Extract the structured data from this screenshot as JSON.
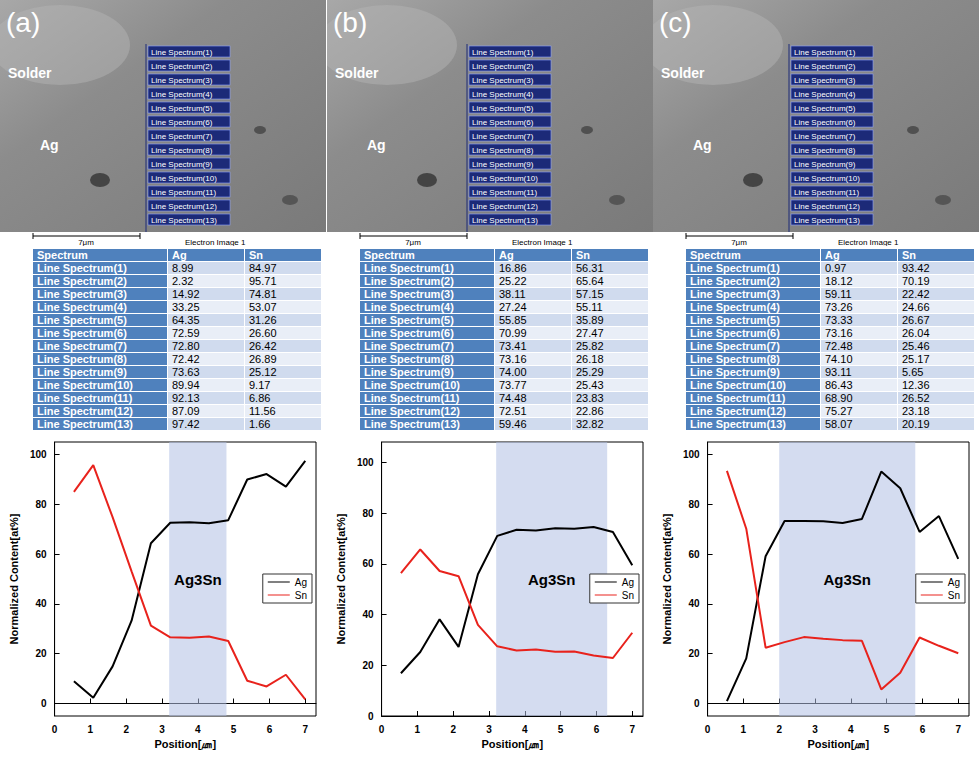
{
  "panels": [
    {
      "image": {
        "label": "(a)",
        "regions": [
          "Solder",
          "Ag"
        ],
        "scale_bar": "7μm",
        "caption": "Electron Image 1"
      },
      "table": {
        "header": [
          "Spectrum",
          "Ag",
          "Sn"
        ],
        "rows": [
          [
            "Line Spectrum(1)",
            "8.99",
            "84.97"
          ],
          [
            "Line Spectrum(2)",
            "2.32",
            "95.71"
          ],
          [
            "Line Spectrum(3)",
            "14.92",
            "74.81"
          ],
          [
            "Line Spectrum(4)",
            "33.25",
            "53.07"
          ],
          [
            "Line Spectrum(5)",
            "64.35",
            "31.26"
          ],
          [
            "Line Spectrum(6)",
            "72.59",
            "26.60"
          ],
          [
            "Line Spectrum(7)",
            "72.80",
            "26.42"
          ],
          [
            "Line Spectrum(8)",
            "72.42",
            "26.89"
          ],
          [
            "Line Spectrum(9)",
            "73.63",
            "25.12"
          ],
          [
            "Line Spectrum(10)",
            "89.94",
            "9.17"
          ],
          [
            "Line Spectrum(11)",
            "92.13",
            "6.86"
          ],
          [
            "Line Spectrum(12)",
            "87.09",
            "11.56"
          ],
          [
            "Line Spectrum(13)",
            "97.42",
            "1.66"
          ]
        ]
      }
    },
    {
      "image": {
        "label": "(b)",
        "regions": [
          "Solder",
          "Ag"
        ],
        "scale_bar": "7μm",
        "caption": "Electron Image 1"
      },
      "table": {
        "header": [
          "Spectrum",
          "Ag",
          "Sn"
        ],
        "rows": [
          [
            "Line Spectrum(1)",
            "16.86",
            "56.31"
          ],
          [
            "Line Spectrum(2)",
            "25.22",
            "65.64"
          ],
          [
            "Line Spectrum(3)",
            "38.11",
            "57.15"
          ],
          [
            "Line Spectrum(4)",
            "27.24",
            "55.11"
          ],
          [
            "Line Spectrum(5)",
            "55.85",
            "35.89"
          ],
          [
            "Line Spectrum(6)",
            "70.99",
            "27.47"
          ],
          [
            "Line Spectrum(7)",
            "73.41",
            "25.82"
          ],
          [
            "Line Spectrum(8)",
            "73.16",
            "26.18"
          ],
          [
            "Line Spectrum(9)",
            "74.00",
            "25.29"
          ],
          [
            "Line Spectrum(10)",
            "73.77",
            "25.43"
          ],
          [
            "Line Spectrum(11)",
            "74.48",
            "23.83"
          ],
          [
            "Line Spectrum(12)",
            "72.51",
            "22.86"
          ],
          [
            "Line Spectrum(13)",
            "59.46",
            "32.82"
          ]
        ]
      }
    },
    {
      "image": {
        "label": "(c)",
        "regions": [
          "Solder",
          "Ag"
        ],
        "scale_bar": "7μm",
        "caption": "Electron Image 1"
      },
      "table": {
        "header": [
          "Spectrum",
          "Ag",
          "Sn"
        ],
        "rows": [
          [
            "Line Spectrum(1)",
            "0.97",
            "93.42"
          ],
          [
            "Line Spectrum(2)",
            "18.12",
            "70.19"
          ],
          [
            "Line Spectrum(3)",
            "59.11",
            "22.42"
          ],
          [
            "Line Spectrum(4)",
            "73.26",
            "24.66"
          ],
          [
            "Line Spectrum(5)",
            "73.33",
            "26.67"
          ],
          [
            "Line Spectrum(6)",
            "73.16",
            "26.04"
          ],
          [
            "Line Spectrum(7)",
            "72.48",
            "25.46"
          ],
          [
            "Line Spectrum(8)",
            "74.10",
            "25.17"
          ],
          [
            "Line Spectrum(9)",
            "93.11",
            "5.65"
          ],
          [
            "Line Spectrum(10)",
            "86.43",
            "12.36"
          ],
          [
            "Line Spectrum(11)",
            "68.90",
            "26.52"
          ],
          [
            "Line Spectrum(12)",
            "75.27",
            "23.18"
          ],
          [
            "Line Spectrum(13)",
            "58.07",
            "20.19"
          ]
        ]
      }
    }
  ],
  "chart_data": [
    {
      "type": "line",
      "xlabel": "Position[㎛]",
      "ylabel": "Normalized Content[at%]",
      "x": [
        0.54,
        1.08,
        1.62,
        2.15,
        2.69,
        3.23,
        3.77,
        4.31,
        4.85,
        5.38,
        5.92,
        6.46,
        7.0
      ],
      "series": [
        {
          "name": "Ag",
          "color": "#000000",
          "values": [
            8.99,
            2.32,
            14.92,
            33.25,
            64.35,
            72.59,
            72.8,
            72.42,
            73.63,
            89.94,
            92.13,
            87.09,
            97.42
          ]
        },
        {
          "name": "Sn",
          "color": "#e8221c",
          "values": [
            84.97,
            95.71,
            74.81,
            53.07,
            31.26,
            26.6,
            26.42,
            26.89,
            25.12,
            9.17,
            6.86,
            11.56,
            1.66
          ]
        }
      ],
      "annotations": [
        {
          "text": "Ag3Sn",
          "x_range": [
            3.2,
            4.8
          ]
        }
      ],
      "xlim": [
        0,
        7.3
      ],
      "xticks": [
        0,
        1,
        2,
        3,
        4,
        5,
        6,
        7
      ],
      "ylim": [
        -5,
        105
      ],
      "yticks": [
        0,
        20,
        40,
        60,
        80,
        100
      ],
      "grid": false,
      "legend": "right"
    },
    {
      "type": "line",
      "xlabel": "Position[㎛]",
      "ylabel": "Normalized Content[at%]",
      "x": [
        0.54,
        1.08,
        1.62,
        2.15,
        2.69,
        3.23,
        3.77,
        4.31,
        4.85,
        5.38,
        5.92,
        6.46,
        7.0
      ],
      "series": [
        {
          "name": "Ag",
          "color": "#000000",
          "values": [
            16.86,
            25.22,
            38.11,
            27.24,
            55.85,
            70.99,
            73.41,
            73.16,
            74.0,
            73.77,
            74.48,
            72.51,
            59.46
          ]
        },
        {
          "name": "Sn",
          "color": "#e8221c",
          "values": [
            56.31,
            65.64,
            57.15,
            55.11,
            35.89,
            27.47,
            25.82,
            26.18,
            25.29,
            25.43,
            23.83,
            22.86,
            32.82
          ]
        }
      ],
      "annotations": [
        {
          "text": "Ag3Sn",
          "x_range": [
            3.2,
            6.3
          ]
        }
      ],
      "xlim": [
        0,
        7.3
      ],
      "xticks": [
        0,
        1,
        2,
        3,
        4,
        5,
        6,
        7
      ],
      "ylim": [
        0,
        108
      ],
      "yticks": [
        0,
        20,
        40,
        60,
        80,
        100
      ],
      "grid": false,
      "legend": "right"
    },
    {
      "type": "line",
      "xlabel": "Position[㎛]",
      "ylabel": "Normalized Content[at%]",
      "x": [
        0.54,
        1.08,
        1.62,
        2.15,
        2.69,
        3.23,
        3.77,
        4.31,
        4.85,
        5.38,
        5.92,
        6.46,
        7.0
      ],
      "series": [
        {
          "name": "Ag",
          "color": "#000000",
          "values": [
            0.97,
            18.12,
            59.11,
            73.26,
            73.33,
            73.16,
            72.48,
            74.1,
            93.11,
            86.43,
            68.9,
            75.27,
            58.07
          ]
        },
        {
          "name": "Sn",
          "color": "#e8221c",
          "values": [
            93.42,
            70.19,
            22.42,
            24.66,
            26.67,
            26.04,
            25.46,
            25.17,
            5.65,
            12.36,
            26.52,
            23.18,
            20.19
          ]
        }
      ],
      "annotations": [
        {
          "text": "Ag3Sn",
          "x_range": [
            2.0,
            5.8
          ]
        }
      ],
      "xlim": [
        0,
        7.3
      ],
      "xticks": [
        0,
        1,
        2,
        3,
        4,
        5,
        6,
        7
      ],
      "ylim": [
        -5,
        105
      ],
      "yticks": [
        0,
        20,
        40,
        60,
        80,
        100
      ],
      "grid": false,
      "legend": "right"
    }
  ]
}
